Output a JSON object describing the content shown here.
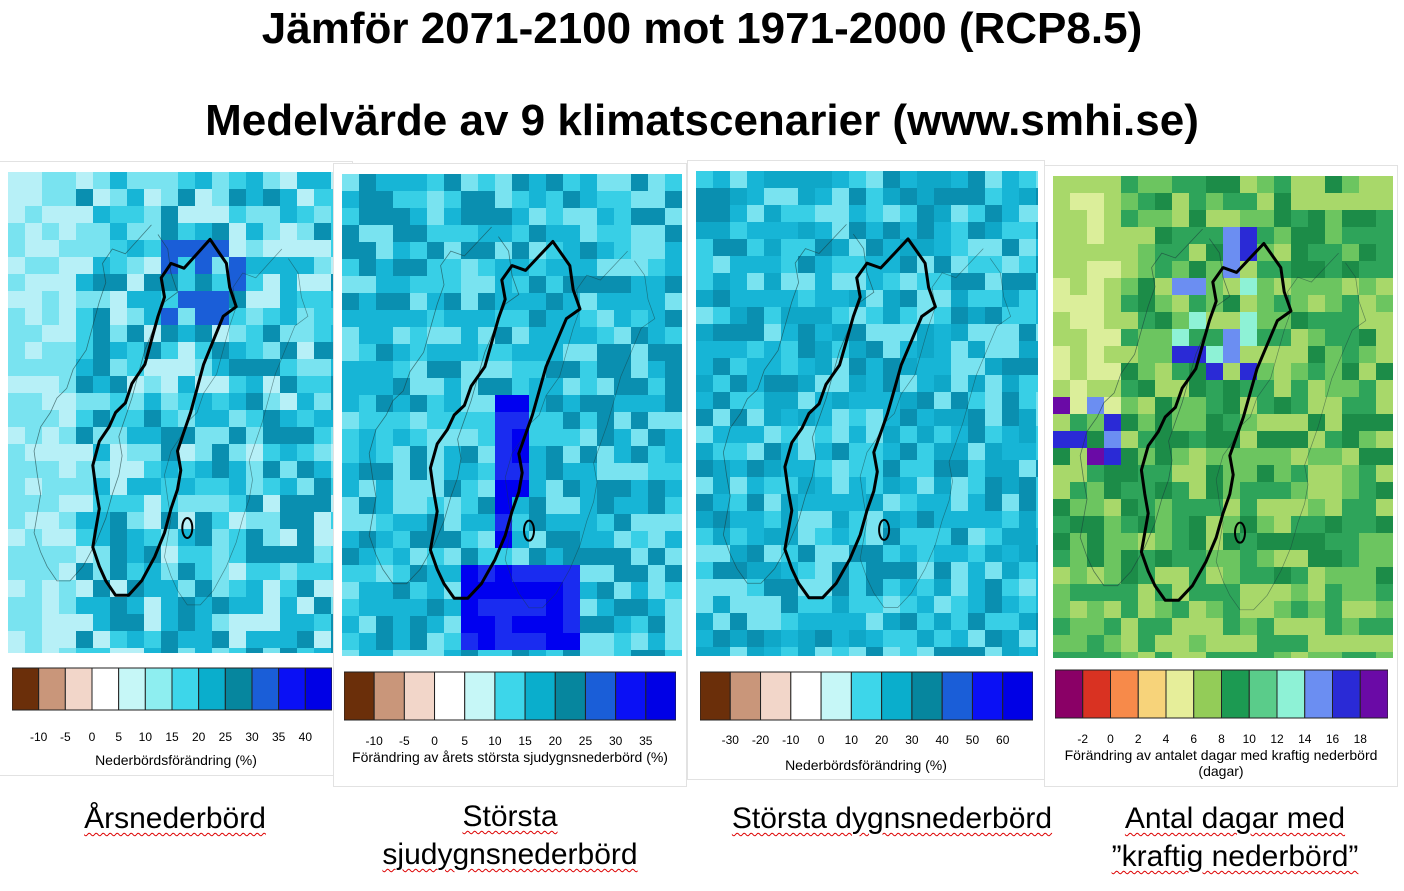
{
  "title_line1": "Jämför 2071-2100 mot 1971-2000 (RCP8.5)",
  "title_line2": "Medelvärde av 9 klimatscenarier (www.smhi.se)",
  "panels": [
    {
      "caption": "Årsnederbörd",
      "legend_title": "Nederbördsförändring (%)",
      "ticks": [
        "-10",
        "-5",
        "0",
        "5",
        "10",
        "15",
        "20",
        "25",
        "30",
        "35",
        "40"
      ],
      "colors": [
        "#6b2f0a",
        "#c9967a",
        "#f2d6c9",
        "#ffffff",
        "#c6f7f7",
        "#8eeef0",
        "#3dd6ea",
        "#0aaecc",
        "#06869e",
        "#1a5ed8",
        "#0a10f5",
        "#0000e6"
      ],
      "map_palette": [
        "#b7f0f7",
        "#79e3f0",
        "#38cfe6",
        "#17b5d6",
        "#0a8fb0",
        "#1a5ed8",
        "#2c45e0"
      ]
    },
    {
      "caption": "Största sjudygnsnederbörd",
      "legend_title": "Förändring av årets största sjudygnsnederbörd (%)",
      "ticks": [
        "-10",
        "-5",
        "0",
        "5",
        "10",
        "15",
        "20",
        "25",
        "30",
        "35"
      ],
      "colors": [
        "#6b2f0a",
        "#c9967a",
        "#f2d6c9",
        "#ffffff",
        "#c6f7f7",
        "#3dd6ea",
        "#0aaecc",
        "#06869e",
        "#1a5ed8",
        "#0a10f5",
        "#0000e6"
      ],
      "map_palette": [
        "#79e3f0",
        "#38cfe6",
        "#17b5d6",
        "#0a8fb0",
        "#1a5ed8",
        "#1a2cf0",
        "#0000f0"
      ]
    },
    {
      "caption": "Största dygnsnederbörd",
      "legend_title": "Nederbördsförändring (%)",
      "ticks": [
        "-30",
        "-20",
        "-10",
        "0",
        "10",
        "20",
        "30",
        "40",
        "50",
        "60"
      ],
      "colors": [
        "#6b2f0a",
        "#c9967a",
        "#f2d6c9",
        "#ffffff",
        "#c6f7f7",
        "#3dd6ea",
        "#0aaecc",
        "#06869e",
        "#1a5ed8",
        "#0a10f5",
        "#0000e6"
      ],
      "map_palette": [
        "#79e3f0",
        "#38cfe6",
        "#17b5d6",
        "#0fa7c8",
        "#0a8fb0"
      ]
    },
    {
      "caption": "Antal dagar med ”kraftig nederbörd”",
      "legend_title": "Förändring av antalet dagar med kraftig nederbörd (dagar)",
      "ticks": [
        "-2",
        "0",
        "2",
        "4",
        "6",
        "8",
        "10",
        "12",
        "14",
        "16",
        "18"
      ],
      "colors": [
        "#8a0066",
        "#d93222",
        "#f78a4a",
        "#f7d37a",
        "#e6ee9a",
        "#93cc58",
        "#1c9a52",
        "#5acc8a",
        "#8ef2d6",
        "#6b8ef2",
        "#2a2ad6",
        "#6a0aa6"
      ],
      "map_palette": [
        "#dbee9a",
        "#a8d86a",
        "#6cc560",
        "#2ea45a",
        "#1c8c48",
        "#8ef2d6",
        "#6b8ef2",
        "#2a2ad6",
        "#6a0aa6"
      ]
    }
  ]
}
